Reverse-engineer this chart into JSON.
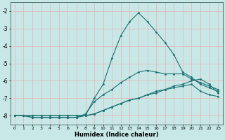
{
  "xlabel": "Humidex (Indice chaleur)",
  "ylabel": "",
  "bg_color": "#c8e8e8",
  "grid_color": "#e8b0b0",
  "line_color": "#1a7070",
  "xlim": [
    -0.5,
    23.5
  ],
  "ylim": [
    -8.5,
    -1.5
  ],
  "xticks": [
    0,
    1,
    2,
    3,
    4,
    5,
    6,
    7,
    8,
    9,
    10,
    11,
    12,
    13,
    14,
    15,
    16,
    17,
    18,
    19,
    20,
    21,
    22,
    23
  ],
  "yticks": [
    -8,
    -7,
    -6,
    -5,
    -4,
    -3,
    -2
  ],
  "series": [
    {
      "x": [
        0,
        1,
        2,
        3,
        4,
        5,
        6,
        7,
        8,
        9,
        10,
        11,
        12,
        13,
        14,
        15,
        16,
        17,
        18,
        19,
        20,
        21,
        22,
        23
      ],
      "y": [
        -8.0,
        -8.0,
        -8.1,
        -8.1,
        -8.1,
        -8.1,
        -8.1,
        -8.1,
        -8.0,
        -7.0,
        -6.2,
        -4.7,
        -3.4,
        -2.6,
        -2.1,
        -2.6,
        -3.2,
        -3.8,
        -4.5,
        -5.5,
        -5.8,
        -6.2,
        -6.4,
        -6.6
      ]
    },
    {
      "x": [
        0,
        1,
        2,
        3,
        4,
        5,
        6,
        7,
        8,
        9,
        10,
        11,
        12,
        13,
        14,
        15,
        16,
        17,
        18,
        19,
        20,
        21,
        22,
        23
      ],
      "y": [
        -8.0,
        -8.0,
        -8.1,
        -8.1,
        -8.1,
        -8.1,
        -8.1,
        -8.1,
        -7.9,
        -7.2,
        -6.8,
        -6.5,
        -6.1,
        -5.8,
        -5.5,
        -5.4,
        -5.5,
        -5.6,
        -5.6,
        -5.6,
        -5.9,
        -6.1,
        -6.3,
        -6.5
      ]
    },
    {
      "x": [
        0,
        1,
        2,
        3,
        4,
        5,
        6,
        7,
        8,
        9,
        10,
        11,
        12,
        13,
        14,
        15,
        16,
        17,
        18,
        19,
        20,
        21,
        22,
        23
      ],
      "y": [
        -8.0,
        -8.0,
        -8.0,
        -8.0,
        -8.0,
        -8.0,
        -8.0,
        -8.0,
        -8.0,
        -7.9,
        -7.7,
        -7.5,
        -7.3,
        -7.1,
        -7.0,
        -6.8,
        -6.6,
        -6.5,
        -6.3,
        -6.2,
        -6.0,
        -5.9,
        -6.2,
        -6.7
      ]
    },
    {
      "x": [
        0,
        1,
        2,
        3,
        4,
        5,
        6,
        7,
        8,
        9,
        10,
        11,
        12,
        13,
        14,
        15,
        16,
        17,
        18,
        19,
        20,
        21,
        22,
        23
      ],
      "y": [
        -8.0,
        -8.0,
        -8.0,
        -8.0,
        -8.0,
        -8.0,
        -8.0,
        -8.0,
        -8.0,
        -7.9,
        -7.7,
        -7.5,
        -7.3,
        -7.1,
        -7.0,
        -6.8,
        -6.7,
        -6.5,
        -6.4,
        -6.3,
        -6.2,
        -6.6,
        -6.8,
        -6.9
      ]
    }
  ]
}
